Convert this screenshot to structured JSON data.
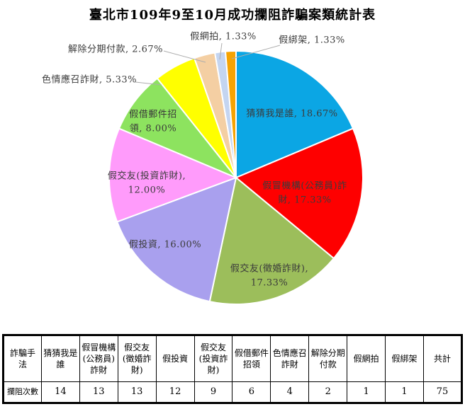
{
  "title": "臺北市109年9至10月成功攔阻詐騙案類統計表",
  "chart_data": {
    "type": "pie",
    "title": "臺北市109年9至10月成功攔阻詐騙案類統計表",
    "start_angle_deg": 0,
    "direction": "clockwise",
    "total": 75,
    "legend": "none",
    "categories": [
      "猜猜我是誰",
      "假冒機構(公務員)詐財",
      "假交友(徵婚詐財)",
      "假投資",
      "假交友(投資詐財)",
      "假借郵件招領",
      "色情應召詐財",
      "解除分期付款",
      "假網拍",
      "假綁架"
    ],
    "values": [
      14,
      13,
      13,
      12,
      9,
      6,
      4,
      2,
      1,
      1
    ],
    "percents": [
      18.67,
      17.33,
      17.33,
      16.0,
      12.0,
      8.0,
      5.33,
      2.67,
      1.33,
      1.33
    ],
    "slice_labels": [
      "猜猜我是誰, 18.67%",
      "假冒機構(公務員)詐\n財, 17.33%",
      "假交友(徵婚詐財),\n17.33%",
      "假投資, 16.00%",
      "假交友(投資詐財),\n12.00%",
      "假借郵件招\n領, 8.00%",
      "色情應召詐財, 5.33%",
      "解除分期付款, 2.67%",
      "假網拍, 1.33%",
      "假綁架, 1.33%"
    ],
    "colors": [
      "#0BA6E4",
      "#FE0000",
      "#9CBE5B",
      "#A9A0EE",
      "#FF9BFB",
      "#8DE35F",
      "#FFFF00",
      "#F4CFA3",
      "#C4D5F1",
      "#F6A302"
    ],
    "label_placement": [
      "inside",
      "inside",
      "inside",
      "inside",
      "inside",
      "inside",
      "outside",
      "outside",
      "outside",
      "outside"
    ],
    "slice_border_color": "#FFFFFF",
    "leader_line_color": "#ADADAD",
    "label_text_color": "#3b3b3b"
  },
  "table": {
    "corner_header": "詐騙手法",
    "row_header": "攔阻次數",
    "columns": [
      "猜猜我是誰",
      "假冒機構(公務員)詐財",
      "假交友(徵婚詐財)",
      "假投資",
      "假交友(投資詐財)",
      "假借郵件招領",
      "色情應召詐財",
      "解除分期付款",
      "假網拍",
      "假綁架",
      "共計"
    ],
    "values": [
      "14",
      "13",
      "13",
      "12",
      "9",
      "6",
      "4",
      "2",
      "1",
      "1",
      "75"
    ]
  }
}
